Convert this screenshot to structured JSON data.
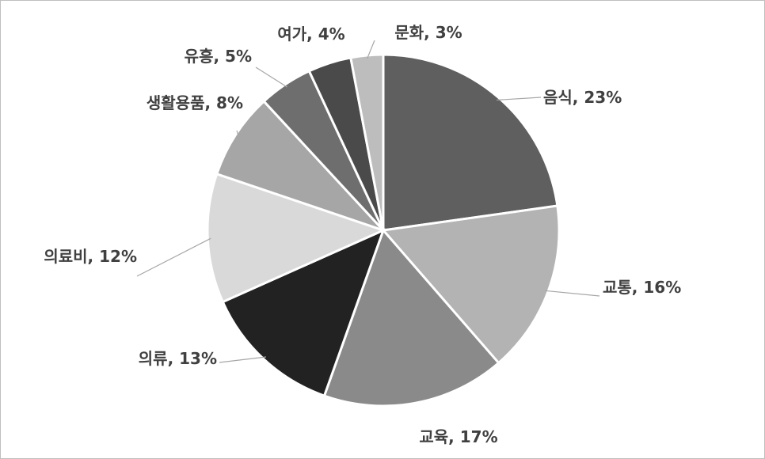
{
  "chart_data": {
    "type": "pie",
    "title": "",
    "slices": [
      {
        "label": "음식",
        "value": 23,
        "text": "음식, 23%",
        "color": "#5f5f5f"
      },
      {
        "label": "교통",
        "value": 16,
        "text": "교통, 16%",
        "color": "#b3b3b3"
      },
      {
        "label": "교육",
        "value": 17,
        "text": "교육, 17%",
        "color": "#8a8a8a"
      },
      {
        "label": "의류",
        "value": 13,
        "text": "의류, 13%",
        "color": "#222222"
      },
      {
        "label": "의료비",
        "value": 12,
        "text": "의료비, 12%",
        "color": "#d9d9d9"
      },
      {
        "label": "생활용품",
        "value": 8,
        "text": "생활용품, 8%",
        "color": "#a6a6a6"
      },
      {
        "label": "유흥",
        "value": 5,
        "text": "유흥, 5%",
        "color": "#6e6e6e"
      },
      {
        "label": "여가",
        "value": 4,
        "text": "여가, 4%",
        "color": "#4a4a4a"
      },
      {
        "label": "문화",
        "value": 3,
        "text": "문화, 3%",
        "color": "#bdbdbd"
      }
    ],
    "legend": "none",
    "start_angle": "12 o'clock",
    "direction": "clockwise"
  }
}
